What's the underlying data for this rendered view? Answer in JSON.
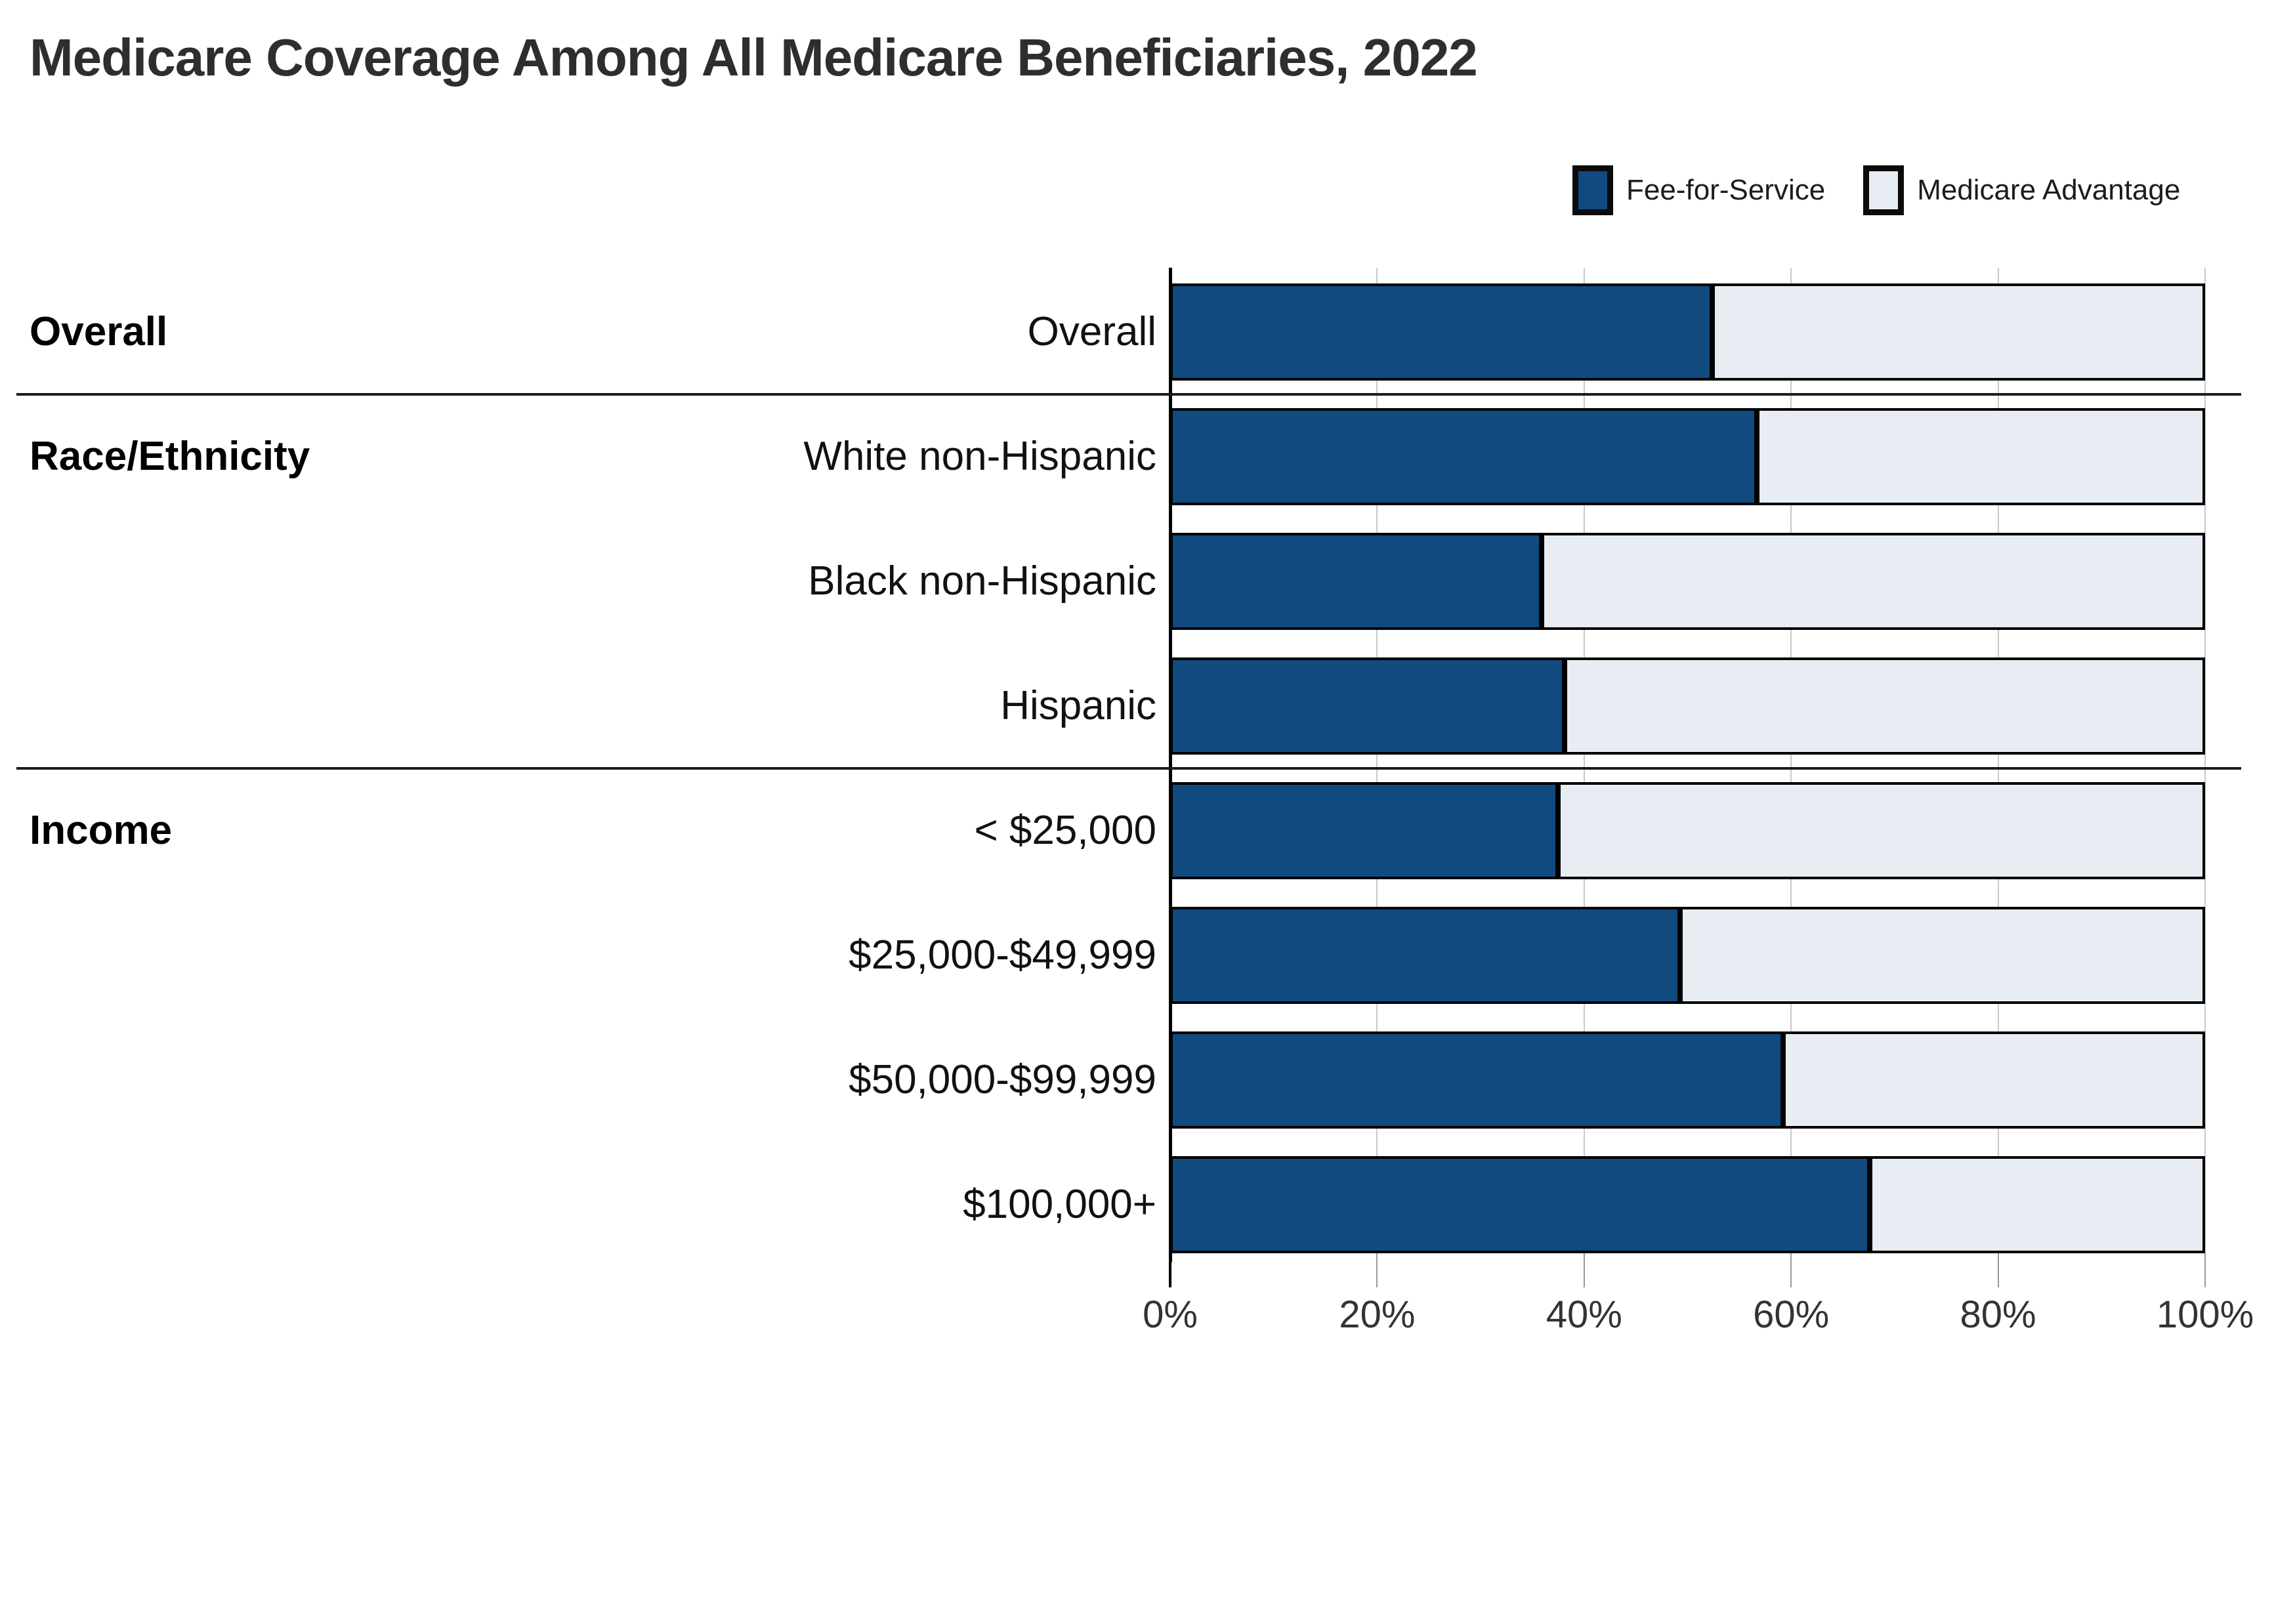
{
  "title": "Medicare Coverage Among All Medicare Beneficiaries, 2022",
  "legend": [
    {
      "label": "Fee-for-Service",
      "color": "#114a7f"
    },
    {
      "label": "Medicare Advantage",
      "color": "#e8ecf3"
    }
  ],
  "chart_data": {
    "type": "bar",
    "orientation": "horizontal",
    "stacked": true,
    "unit": "percent of beneficiaries",
    "title": "Medicare Coverage Among All Medicare Beneficiaries, 2022",
    "xlim": [
      0,
      100
    ],
    "x_tick_values": [
      0,
      20,
      40,
      60,
      80,
      100
    ],
    "x_tick_labels": [
      "0%",
      "20%",
      "40%",
      "60%",
      "80%",
      "100%"
    ],
    "grid": true,
    "legend_position": "top-right",
    "categories": [
      "Overall",
      "White non-Hispanic",
      "Black non-Hispanic",
      "Hispanic",
      "< $25,000",
      "$25,000-$49,999",
      "$50,000-$99,999",
      "$100,000+"
    ],
    "groups": [
      {
        "label": "Overall",
        "first_row": 0
      },
      {
        "label": "Race/Ethnicity",
        "first_row": 1
      },
      {
        "label": "Income",
        "first_row": 4
      }
    ],
    "series": [
      {
        "name": "Fee-for-Service",
        "color": "#114a7f",
        "values": [
          52.4,
          56.7,
          35.9,
          38.1,
          37.5,
          49.3,
          59.2,
          67.6
        ]
      },
      {
        "name": "Medicare Advantage",
        "color": "#e8ecf3",
        "values": [
          47.6,
          43.3,
          64.1,
          61.9,
          62.5,
          50.7,
          40.8,
          32.4
        ]
      }
    ]
  },
  "colors": {
    "bar_border": "#000000",
    "gridline": "#c9c9c9",
    "axis_line": "#000000",
    "divider": "#1c1c1c",
    "minor_tick": "#999999",
    "title_text": "#2e2e2e",
    "label_text": "#111111",
    "tick_text": "#333333"
  }
}
